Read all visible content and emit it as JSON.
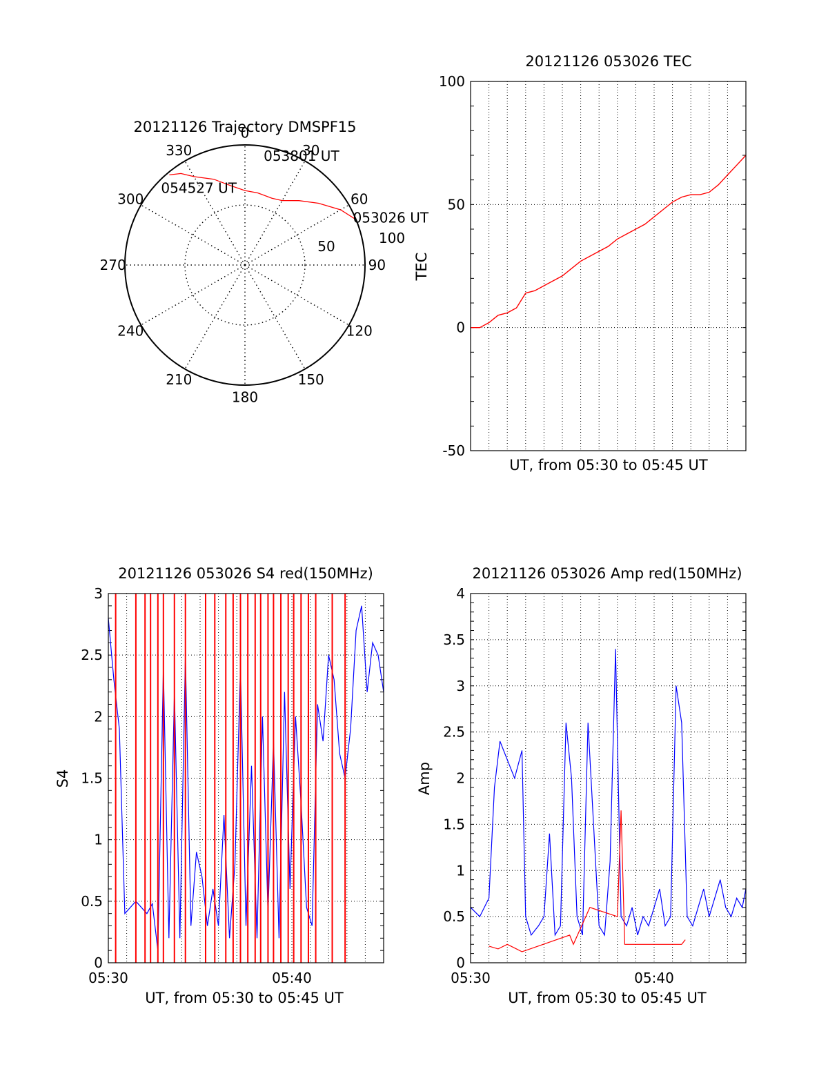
{
  "chart_data": [
    {
      "type": "polar",
      "title": "20121126 Trajectory DMSPF15",
      "azimuth_ticks": [
        "0",
        "30",
        "60",
        "90",
        "120",
        "150",
        "180",
        "210",
        "240",
        "270",
        "300",
        "330"
      ],
      "elevation_ticks": [
        "50",
        "100"
      ],
      "rmax": 100,
      "grid": true,
      "trajectory": {
        "color": "#ff0000",
        "points": [
          [
            67,
            99
          ],
          [
            60,
            92
          ],
          [
            50,
            80
          ],
          [
            40,
            70
          ],
          [
            30,
            62
          ],
          [
            22,
            60
          ],
          [
            10,
            61
          ],
          [
            0,
            62
          ],
          [
            -10,
            67
          ],
          [
            -20,
            76
          ],
          [
            -30,
            85
          ],
          [
            -35,
            93
          ],
          [
            -40,
            98
          ]
        ]
      },
      "annotations": [
        {
          "text": "053026 UT",
          "az": 67,
          "r": 99
        },
        {
          "text": "053801 UT",
          "az": 22,
          "r": 60
        },
        {
          "text": "054527 UT",
          "az": -40,
          "r": 98
        }
      ]
    },
    {
      "type": "line",
      "title": "20121126 053026 TEC",
      "xlabel": "UT, from 05:30 to 05:45 UT",
      "ylabel": "TEC",
      "xlim": [
        0,
        15
      ],
      "ylim": [
        -50,
        100
      ],
      "yticks": [
        "100",
        "50",
        "0",
        "-50"
      ],
      "grid": true,
      "series": [
        {
          "color": "#ff0000",
          "x": [
            0,
            0.5,
            1,
            1.5,
            2,
            2.5,
            3,
            3.5,
            4,
            4.5,
            5,
            5.5,
            6,
            6.5,
            7,
            7.5,
            8,
            8.5,
            9,
            9.5,
            10,
            10.5,
            11,
            11.5,
            12,
            12.5,
            13,
            13.5,
            14,
            14.5,
            15
          ],
          "y": [
            0,
            0,
            2,
            5,
            6,
            8,
            14,
            15,
            17,
            19,
            21,
            24,
            27,
            29,
            31,
            33,
            36,
            38,
            40,
            42,
            45,
            48,
            51,
            53,
            54,
            54,
            55,
            58,
            62,
            66,
            70
          ]
        }
      ]
    },
    {
      "type": "line",
      "title": "20121126 053026 S4 red(150MHz)",
      "xlabel": "UT, from 05:30 to 05:45 UT",
      "ylabel": "S4",
      "xlim": [
        0,
        15
      ],
      "ylim": [
        0,
        3
      ],
      "xticks": [
        "05:30",
        "05:40"
      ],
      "yticks": [
        "0",
        "0.5",
        "1",
        "1.5",
        "2",
        "2.5",
        "3"
      ],
      "grid": true,
      "series": [
        {
          "color": "#0000ff",
          "x": [
            0,
            0.3,
            0.6,
            0.9,
            1.2,
            1.5,
            1.8,
            2.1,
            2.4,
            2.7,
            3.0,
            3.3,
            3.6,
            3.9,
            4.2,
            4.5,
            4.8,
            5.1,
            5.4,
            5.7,
            6.0,
            6.3,
            6.6,
            6.9,
            7.2,
            7.5,
            7.8,
            8.1,
            8.4,
            8.7,
            9.0,
            9.3,
            9.6,
            9.9,
            10.2,
            10.5,
            10.8,
            11.1,
            11.4,
            11.7,
            12.0,
            12.3,
            12.6,
            12.9,
            13.2,
            13.5,
            13.8,
            14.1,
            14.4,
            14.7,
            15
          ],
          "y": [
            2.8,
            2.3,
            1.9,
            0.4,
            0.45,
            0.5,
            0.45,
            0.4,
            0.48,
            0.1,
            2.4,
            0.2,
            2.2,
            0.2,
            2.5,
            0.3,
            0.9,
            0.7,
            0.3,
            0.6,
            0.3,
            1.2,
            0.2,
            0.8,
            2.4,
            0.3,
            1.6,
            0.2,
            2.0,
            0.4,
            1.8,
            0.2,
            2.2,
            0.6,
            2.0,
            1.3,
            0.45,
            0.3,
            2.1,
            1.8,
            2.5,
            2.3,
            1.7,
            1.5,
            1.9,
            2.7,
            2.9,
            2.2,
            2.6,
            2.5,
            2.2
          ]
        },
        {
          "color": "#ff0000",
          "x": [
            0.4,
            1.5,
            2.0,
            2.3,
            2.7,
            3.0,
            3.6,
            4.2,
            5.3,
            5.8,
            6.4,
            6.8,
            7.2,
            7.6,
            8.0,
            8.3,
            8.7,
            9.0,
            9.4,
            9.8,
            10.1,
            10.5,
            10.9,
            11.3,
            12.2,
            12.9
          ],
          "y": [
            3,
            3,
            3,
            3,
            3,
            3,
            3,
            3,
            3,
            3,
            3,
            3,
            3,
            3,
            3,
            3,
            3,
            3,
            3,
            3,
            3,
            3,
            3,
            3,
            3,
            3
          ]
        }
      ]
    },
    {
      "type": "line",
      "title": "20121126 053026 Amp red(150MHz)",
      "xlabel": "UT, from 05:30 to 05:45 UT",
      "ylabel": "Amp",
      "xlim": [
        0,
        15
      ],
      "ylim": [
        0,
        4
      ],
      "xticks": [
        "05:30",
        "05:40"
      ],
      "yticks": [
        "0",
        "0.5",
        "1",
        "1.5",
        "2",
        "2.5",
        "3",
        "3.5",
        "4"
      ],
      "grid": true,
      "series": [
        {
          "color": "#0000ff",
          "x": [
            0,
            0.5,
            1.0,
            1.3,
            1.6,
            2.0,
            2.4,
            2.8,
            3.0,
            3.3,
            3.7,
            4.0,
            4.3,
            4.6,
            4.9,
            5.2,
            5.5,
            5.8,
            6.1,
            6.4,
            6.7,
            7.0,
            7.3,
            7.6,
            7.9,
            8.2,
            8.5,
            8.8,
            9.1,
            9.4,
            9.7,
            10.0,
            10.3,
            10.6,
            10.9,
            11.2,
            11.5,
            11.8,
            12.1,
            12.4,
            12.7,
            13.0,
            13.3,
            13.6,
            13.9,
            14.2,
            14.5,
            14.8,
            15
          ],
          "y": [
            0.6,
            0.5,
            0.7,
            1.9,
            2.4,
            2.2,
            2.0,
            2.3,
            0.5,
            0.3,
            0.4,
            0.5,
            1.4,
            0.3,
            0.4,
            2.6,
            2.0,
            0.5,
            0.3,
            2.6,
            1.5,
            0.4,
            0.3,
            1.1,
            3.4,
            0.5,
            0.4,
            0.6,
            0.3,
            0.5,
            0.4,
            0.6,
            0.8,
            0.4,
            0.5,
            3.0,
            2.6,
            0.5,
            0.4,
            0.6,
            0.8,
            0.5,
            0.7,
            0.9,
            0.6,
            0.5,
            0.7,
            0.6,
            0.8
          ]
        },
        {
          "color": "#ff0000",
          "x": [
            1.0,
            1.5,
            2.0,
            2.5,
            2.8,
            5.4,
            5.6,
            6.5,
            8.0,
            8.2,
            8.4,
            11.5,
            11.7
          ],
          "y": [
            0.18,
            0.15,
            0.2,
            0.15,
            0.12,
            0.3,
            0.2,
            0.6,
            0.5,
            1.65,
            0.2,
            0.2,
            0.25
          ]
        }
      ]
    }
  ]
}
